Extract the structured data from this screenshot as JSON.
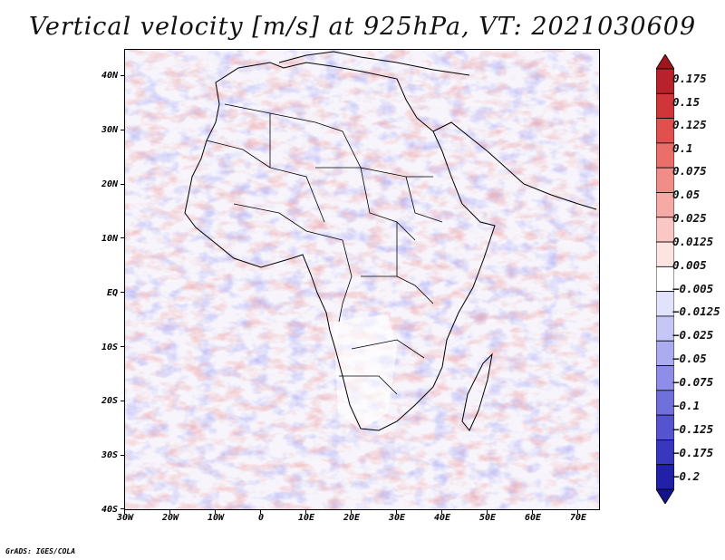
{
  "title": "Vertical velocity [m/s] at 925hPa, VT: 2021030609",
  "map": {
    "lat_labels": [
      "40N",
      "30N",
      "20N",
      "10N",
      "EQ",
      "10S",
      "20S",
      "30S",
      "40S"
    ],
    "lon_labels": [
      "30W",
      "20W",
      "10W",
      "0",
      "10E",
      "20E",
      "30E",
      "40E",
      "50E",
      "60E",
      "70E"
    ],
    "lat_range": [
      -40,
      45
    ],
    "lon_range": [
      -30,
      75
    ]
  },
  "colorbar": {
    "labels": [
      "0.175",
      "0.15",
      "0.125",
      "0.1",
      "0.075",
      "0.05",
      "0.025",
      "0.0125",
      "0.005",
      "−0.005",
      "−0.0125",
      "−0.025",
      "−0.05",
      "−0.075",
      "−0.1",
      "−0.125",
      "−0.175",
      "−0.2"
    ],
    "colors": [
      "#a0141e",
      "#b8232b",
      "#d0353a",
      "#e0504f",
      "#ea6e6a",
      "#f08d88",
      "#f5aaa5",
      "#f9c8c4",
      "#fde4e1",
      "#ffffff",
      "#e2e2fc",
      "#c7c7f7",
      "#ababf0",
      "#8e8ee8",
      "#7070dd",
      "#5454d0",
      "#3838bf",
      "#2020a8",
      "#14148a"
    ]
  },
  "credit": "GrADS: IGES/COLA"
}
